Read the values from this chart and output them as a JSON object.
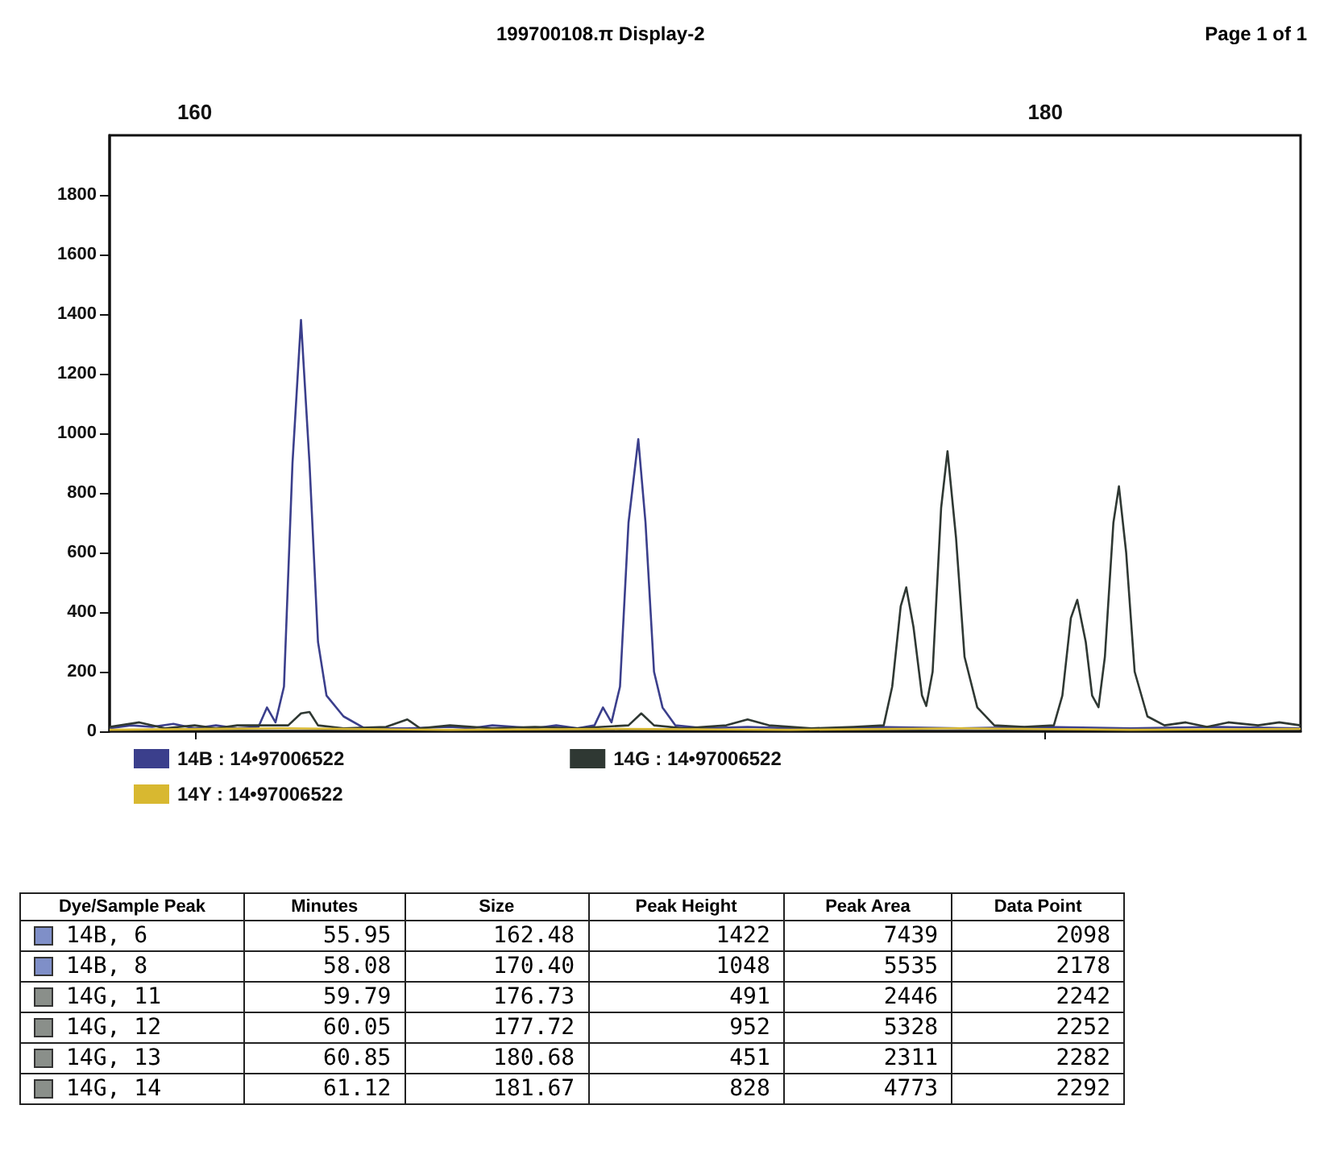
{
  "chart_data": [
    {
      "type": "line",
      "annotations": [
        "199700108.π Display-2",
        "Page 1 of 1"
      ],
      "xlim": [
        158,
        186
      ],
      "xticks": [
        160,
        180
      ],
      "ylim": [
        0,
        2000
      ],
      "yticks": [
        0,
        200,
        400,
        600,
        800,
        1000,
        1200,
        1400,
        1600,
        1800
      ],
      "legend": "bottom",
      "series": [
        {
          "name": "14B : 14•97006522",
          "color": "#3b3f8c",
          "x": [
            158,
            158.5,
            159,
            159.5,
            160,
            160.5,
            161,
            161.5,
            161.7,
            161.9,
            162.1,
            162.3,
            162.5,
            162.7,
            162.9,
            163.1,
            163.5,
            164,
            165,
            166,
            166.5,
            167,
            168,
            168.5,
            169,
            169.4,
            169.6,
            169.8,
            170,
            170.2,
            170.43,
            170.6,
            170.8,
            171,
            171.3,
            172,
            173,
            174,
            175,
            176,
            178,
            180,
            182,
            184,
            186
          ],
          "values": [
            10,
            20,
            15,
            25,
            10,
            20,
            10,
            15,
            80,
            30,
            150,
            900,
            1380,
            900,
            300,
            120,
            50,
            10,
            10,
            15,
            10,
            20,
            10,
            20,
            10,
            20,
            80,
            30,
            150,
            700,
            980,
            700,
            200,
            80,
            20,
            10,
            15,
            10,
            10,
            15,
            10,
            15,
            10,
            15,
            10
          ]
        },
        {
          "name": "14G : 14•97006522",
          "color": "#2f3833",
          "x": [
            158,
            158.7,
            159.3,
            160,
            160.5,
            161,
            162.2,
            162.5,
            162.7,
            162.9,
            163.5,
            164.5,
            165,
            165.3,
            166,
            167,
            168,
            169,
            170.2,
            170.5,
            170.8,
            171.5,
            172.5,
            173,
            173.5,
            174.5,
            175.5,
            176.2,
            176.4,
            176.6,
            176.73,
            176.9,
            177.1,
            177.2,
            177.35,
            177.55,
            177.7,
            177.9,
            178.1,
            178.4,
            178.8,
            179.5,
            180.2,
            180.4,
            180.6,
            180.75,
            180.95,
            181.1,
            181.25,
            181.4,
            181.6,
            181.73,
            181.9,
            182.1,
            182.4,
            182.8,
            183.3,
            183.8,
            184.3,
            185,
            185.5,
            186
          ],
          "values": [
            15,
            30,
            10,
            20,
            10,
            20,
            20,
            60,
            65,
            20,
            10,
            15,
            40,
            10,
            20,
            10,
            15,
            10,
            20,
            60,
            20,
            10,
            20,
            40,
            20,
            10,
            15,
            20,
            150,
            420,
            483,
            350,
            120,
            85,
            200,
            750,
            940,
            650,
            250,
            80,
            20,
            15,
            20,
            120,
            380,
            441,
            300,
            120,
            81,
            250,
            700,
            822,
            600,
            200,
            50,
            20,
            30,
            15,
            30,
            20,
            30,
            20
          ]
        },
        {
          "name": "14Y : 14•97006522",
          "color": "#d8b830",
          "x": [
            158,
            162,
            166,
            170,
            174,
            178,
            182,
            186
          ],
          "values": [
            5,
            10,
            5,
            8,
            5,
            10,
            5,
            8
          ]
        }
      ]
    },
    {
      "type": "other",
      "categories": [
        "Dye/Sample Peak",
        "Minutes",
        "Size",
        "Peak Height",
        "Peak Area",
        "Data Point"
      ],
      "colors": [
        "#7f8fc8",
        "#7f8fc8",
        "#8a8f8a",
        "#8a8f8a",
        "#8a8f8a",
        "#8a8f8a"
      ],
      "annotations": [
        "14B, 6",
        "55.95",
        "162.48",
        "1422",
        "7439",
        "2098",
        "14B, 8",
        "58.08",
        "170.40",
        "1048",
        "5535",
        "2178",
        "14G, 11",
        "59.79",
        "176.73",
        "491",
        "2446",
        "2242",
        "14G, 12",
        "60.05",
        "177.72",
        "952",
        "5328",
        "2252",
        "14G, 13",
        "60.85",
        "180.68",
        "451",
        "2311",
        "2282",
        "14G, 14",
        "61.12",
        "181.67",
        "828",
        "4773",
        "2292"
      ]
    }
  ]
}
